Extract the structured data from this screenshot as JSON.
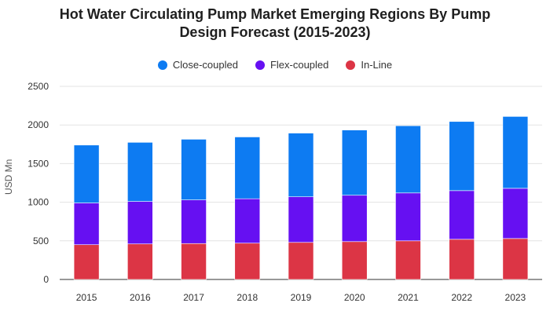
{
  "chart_data": {
    "type": "bar",
    "stacked": true,
    "title": "Hot Water Circulating Pump Market Emerging Regions By Pump Design Forecast (2015-2023)",
    "title_lines": [
      "Hot Water Circulating Pump Market Emerging Regions By Pump",
      "Design Forecast (2015-2023)"
    ],
    "xlabel": "",
    "ylabel": "USD Mn",
    "ylim": [
      0,
      2500
    ],
    "yticks": [
      0,
      500,
      1000,
      1500,
      2000,
      2500
    ],
    "grid": true,
    "legend_position": "top-center",
    "categories": [
      "2015",
      "2016",
      "2017",
      "2018",
      "2019",
      "2020",
      "2021",
      "2022",
      "2023"
    ],
    "series": [
      {
        "name": "In-Line",
        "color": "#dc3545",
        "values": [
          450,
          460,
          465,
          470,
          480,
          490,
          500,
          520,
          530
        ]
      },
      {
        "name": "Flex-coupled",
        "color": "#6610f2",
        "values": [
          540,
          550,
          565,
          575,
          590,
          600,
          620,
          630,
          650
        ]
      },
      {
        "name": "Close-coupled",
        "color": "#0d7bf2",
        "values": [
          750,
          765,
          785,
          800,
          825,
          845,
          870,
          895,
          930
        ]
      }
    ],
    "legend_order": [
      "Close-coupled",
      "Flex-coupled",
      "In-Line"
    ]
  }
}
